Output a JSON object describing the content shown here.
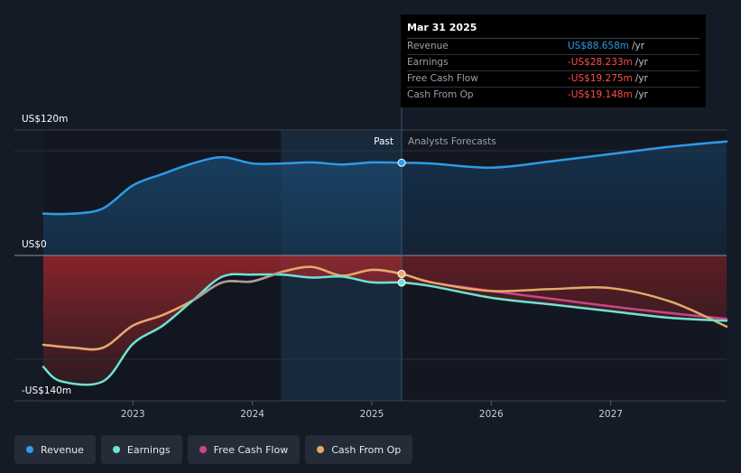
{
  "colors": {
    "revenue": "#2d9be6",
    "earnings": "#6ee3d4",
    "fcf": "#c8468a",
    "cfo": "#e5a968",
    "negative": "#ff4d4d"
  },
  "tooltip": {
    "date": "Mar 31 2025",
    "rows": [
      {
        "label": "Revenue",
        "value": "US$88.658m",
        "unit": "/yr",
        "color": "#2d9be6"
      },
      {
        "label": "Earnings",
        "value": "-US$28.233m",
        "unit": "/yr",
        "color": "#ff4d4d"
      },
      {
        "label": "Free Cash Flow",
        "value": "-US$19.275m",
        "unit": "/yr",
        "color": "#ff4d4d"
      },
      {
        "label": "Cash From Op",
        "value": "-US$19.148m",
        "unit": "/yr",
        "color": "#ff4d4d"
      }
    ]
  },
  "legend": [
    {
      "label": "Revenue",
      "color": "#2d9be6"
    },
    {
      "label": "Earnings",
      "color": "#6ee3d4"
    },
    {
      "label": "Free Cash Flow",
      "color": "#c8468a"
    },
    {
      "label": "Cash From Op",
      "color": "#e5a968"
    }
  ],
  "chart_data": {
    "type": "line",
    "title": "",
    "y_unit": "US$m",
    "ylim": [
      -140,
      120
    ],
    "y_tick_labels": [
      {
        "value": 120,
        "label": "US$120m"
      },
      {
        "value": 0,
        "label": "US$0"
      },
      {
        "value": -140,
        "label": "-US$140m"
      }
    ],
    "xlim": [
      2022.25,
      2027.97
    ],
    "x_tick_labels": [
      {
        "value": 2023,
        "label": "2023"
      },
      {
        "value": 2024,
        "label": "2024"
      },
      {
        "value": 2025,
        "label": "2025"
      },
      {
        "value": 2026,
        "label": "2026"
      },
      {
        "value": 2027,
        "label": "2027"
      }
    ],
    "past_start": 2024.24,
    "divider": 2025.25,
    "past_label": "Past",
    "forecast_label": "Analysts Forecasts",
    "series": [
      {
        "name": "Revenue",
        "color": "#2d9be6",
        "points": [
          [
            2022.25,
            40
          ],
          [
            2022.5,
            40
          ],
          [
            2022.75,
            45
          ],
          [
            2023.0,
            67
          ],
          [
            2023.25,
            78
          ],
          [
            2023.5,
            88
          ],
          [
            2023.75,
            94
          ],
          [
            2024.0,
            88
          ],
          [
            2024.25,
            88
          ],
          [
            2024.5,
            89
          ],
          [
            2024.75,
            87
          ],
          [
            2025.0,
            89
          ],
          [
            2025.25,
            88.7
          ],
          [
            2025.5,
            88
          ],
          [
            2026.0,
            84
          ],
          [
            2026.5,
            90
          ],
          [
            2027.0,
            97
          ],
          [
            2027.5,
            104
          ],
          [
            2027.97,
            109
          ]
        ]
      },
      {
        "name": "Earnings",
        "color": "#6ee3d4",
        "points": [
          [
            2022.25,
            -116
          ],
          [
            2022.4,
            -131
          ],
          [
            2022.75,
            -131
          ],
          [
            2023.0,
            -92
          ],
          [
            2023.25,
            -73
          ],
          [
            2023.5,
            -47
          ],
          [
            2023.75,
            -22
          ],
          [
            2024.0,
            -20
          ],
          [
            2024.25,
            -20
          ],
          [
            2024.5,
            -23
          ],
          [
            2024.75,
            -22
          ],
          [
            2025.0,
            -28
          ],
          [
            2025.25,
            -28.2
          ],
          [
            2025.5,
            -32
          ],
          [
            2026.0,
            -44
          ],
          [
            2026.5,
            -51
          ],
          [
            2027.0,
            -58
          ],
          [
            2027.5,
            -65
          ],
          [
            2027.97,
            -68
          ]
        ]
      },
      {
        "name": "Free Cash Flow",
        "color": "#c8468a",
        "points": [
          [
            2022.25,
            -93
          ],
          [
            2022.5,
            -96
          ],
          [
            2022.75,
            -96
          ],
          [
            2023.0,
            -73
          ],
          [
            2023.25,
            -62
          ],
          [
            2023.5,
            -47
          ],
          [
            2023.75,
            -28
          ],
          [
            2024.0,
            -27
          ],
          [
            2024.25,
            -17
          ],
          [
            2024.5,
            -12
          ],
          [
            2024.75,
            -21
          ],
          [
            2025.0,
            -15
          ],
          [
            2025.25,
            -19.3
          ],
          [
            2025.5,
            -28
          ],
          [
            2026.0,
            -37
          ],
          [
            2026.5,
            -45
          ],
          [
            2027.0,
            -53
          ],
          [
            2027.5,
            -60
          ],
          [
            2027.97,
            -66
          ]
        ]
      },
      {
        "name": "Cash From Op",
        "color": "#e5a968",
        "points": [
          [
            2022.25,
            -93
          ],
          [
            2022.5,
            -96
          ],
          [
            2022.75,
            -96
          ],
          [
            2023.0,
            -73
          ],
          [
            2023.25,
            -62
          ],
          [
            2023.5,
            -47
          ],
          [
            2023.75,
            -28
          ],
          [
            2024.0,
            -27
          ],
          [
            2024.25,
            -17
          ],
          [
            2024.5,
            -12
          ],
          [
            2024.75,
            -21
          ],
          [
            2025.0,
            -15
          ],
          [
            2025.25,
            -19.1
          ],
          [
            2025.5,
            -28
          ],
          [
            2026.0,
            -37
          ],
          [
            2026.5,
            -35
          ],
          [
            2027.0,
            -34
          ],
          [
            2027.5,
            -48
          ],
          [
            2027.97,
            -74
          ]
        ]
      }
    ]
  }
}
